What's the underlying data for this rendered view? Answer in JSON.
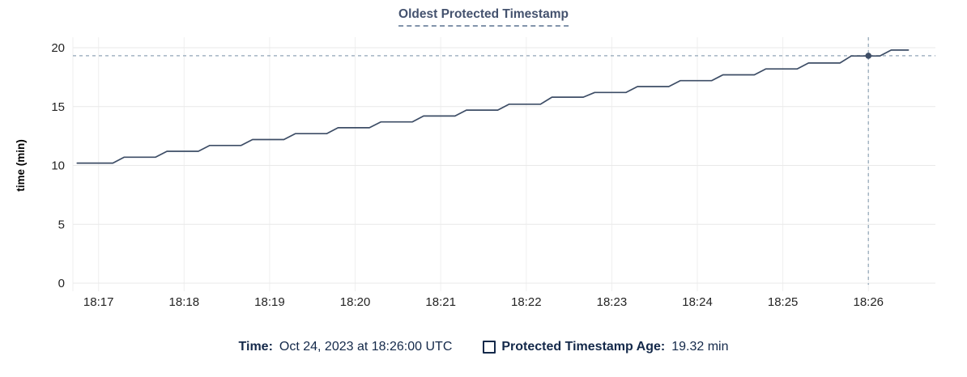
{
  "header": {
    "title": "Oldest Protected Timestamp"
  },
  "legend": {
    "time_label": "Time:",
    "time_value": "Oct 24, 2023 at 18:26:00 UTC",
    "series_swatch": "empty-square",
    "series_label": "Protected Timestamp Age:",
    "series_value": "19.32 min"
  },
  "colors": {
    "title": "#44526e",
    "title_underline": "#8294ab",
    "legend_text": "#14294a",
    "series_line": "#3d4d66",
    "hover_point": "#3d4d66",
    "crosshair": "#a3b4c2",
    "grid_horizontal": "#e9e9e9",
    "grid_vertical": "#efefef",
    "tick_text": "#242424",
    "axis_label_text": "#000000"
  },
  "chart_data": {
    "type": "line",
    "title": "Oldest Protected Timestamp",
    "xlabel": "",
    "ylabel": "time (min)",
    "ylim": [
      0,
      20
    ],
    "yticks": [
      0,
      5,
      10,
      15,
      20
    ],
    "xticks": [
      "18:17",
      "18:18",
      "18:19",
      "18:20",
      "18:21",
      "18:22",
      "18:23",
      "18:24",
      "18:25",
      "18:26"
    ],
    "x_start": "18:16:42",
    "x_end": "18:26:47",
    "grid": true,
    "legend_position": "bottom",
    "series": [
      {
        "name": "Protected Timestamp Age",
        "unit": "min",
        "points": [
          [
            "18:16:45",
            10.2
          ],
          [
            "18:17:10",
            10.2
          ],
          [
            "18:17:18",
            10.7
          ],
          [
            "18:17:40",
            10.7
          ],
          [
            "18:17:48",
            11.2
          ],
          [
            "18:18:10",
            11.2
          ],
          [
            "18:18:18",
            11.7
          ],
          [
            "18:18:40",
            11.7
          ],
          [
            "18:18:48",
            12.2
          ],
          [
            "18:19:10",
            12.2
          ],
          [
            "18:19:18",
            12.7
          ],
          [
            "18:19:40",
            12.7
          ],
          [
            "18:19:48",
            13.2
          ],
          [
            "18:20:10",
            13.2
          ],
          [
            "18:20:18",
            13.7
          ],
          [
            "18:20:40",
            13.7
          ],
          [
            "18:20:48",
            14.2
          ],
          [
            "18:21:10",
            14.2
          ],
          [
            "18:21:18",
            14.7
          ],
          [
            "18:21:40",
            14.7
          ],
          [
            "18:21:48",
            15.2
          ],
          [
            "18:22:10",
            15.2
          ],
          [
            "18:22:18",
            15.8
          ],
          [
            "18:22:40",
            15.8
          ],
          [
            "18:22:48",
            16.2
          ],
          [
            "18:23:10",
            16.2
          ],
          [
            "18:23:18",
            16.7
          ],
          [
            "18:23:40",
            16.7
          ],
          [
            "18:23:48",
            17.2
          ],
          [
            "18:24:10",
            17.2
          ],
          [
            "18:24:18",
            17.7
          ],
          [
            "18:24:40",
            17.7
          ],
          [
            "18:24:48",
            18.2
          ],
          [
            "18:25:10",
            18.2
          ],
          [
            "18:25:18",
            18.7
          ],
          [
            "18:25:40",
            18.7
          ],
          [
            "18:25:48",
            19.3
          ],
          [
            "18:26:08",
            19.3
          ],
          [
            "18:26:16",
            19.8
          ],
          [
            "18:26:28",
            19.8
          ]
        ]
      }
    ],
    "hover": {
      "time": "18:26:00",
      "time_label": "Oct 24, 2023 at 18:26:00 UTC",
      "value": 19.32,
      "value_label": "19.32 min"
    }
  }
}
